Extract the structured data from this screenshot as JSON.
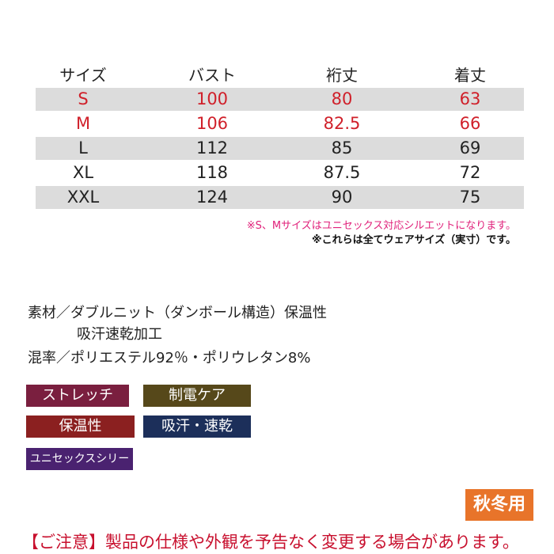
{
  "table": {
    "header": [
      "サイズ",
      "バスト",
      "裄丈",
      "着丈"
    ],
    "rows": [
      [
        "S",
        "100",
        "80",
        "63"
      ],
      [
        "M",
        "106",
        "82.5",
        "66"
      ],
      [
        "L",
        "112",
        "85",
        "69"
      ],
      [
        "XL",
        "118",
        "87.5",
        "72"
      ],
      [
        "XXL",
        "124",
        "90",
        "75"
      ]
    ]
  },
  "notes": [
    "※S、Mサイズはユニセックス対応シルエットになります。",
    "※これらは全てウェアサイズ（実寸）です。"
  ],
  "material": [
    "素材／ダブルニット（ダンボール構造）保温性",
    "吸汗速乾加工",
    "混率／ポリエステル92％・ポリウレタン8%"
  ],
  "badges": [
    "ストレッチ",
    "制電ケア",
    "保温性",
    "吸汗・速乾",
    "ユニセックスシリーズ"
  ],
  "season": "秋冬用",
  "notice": "【ご注意】製品の仕様や外観を予告なく変更する場合があります。"
}
